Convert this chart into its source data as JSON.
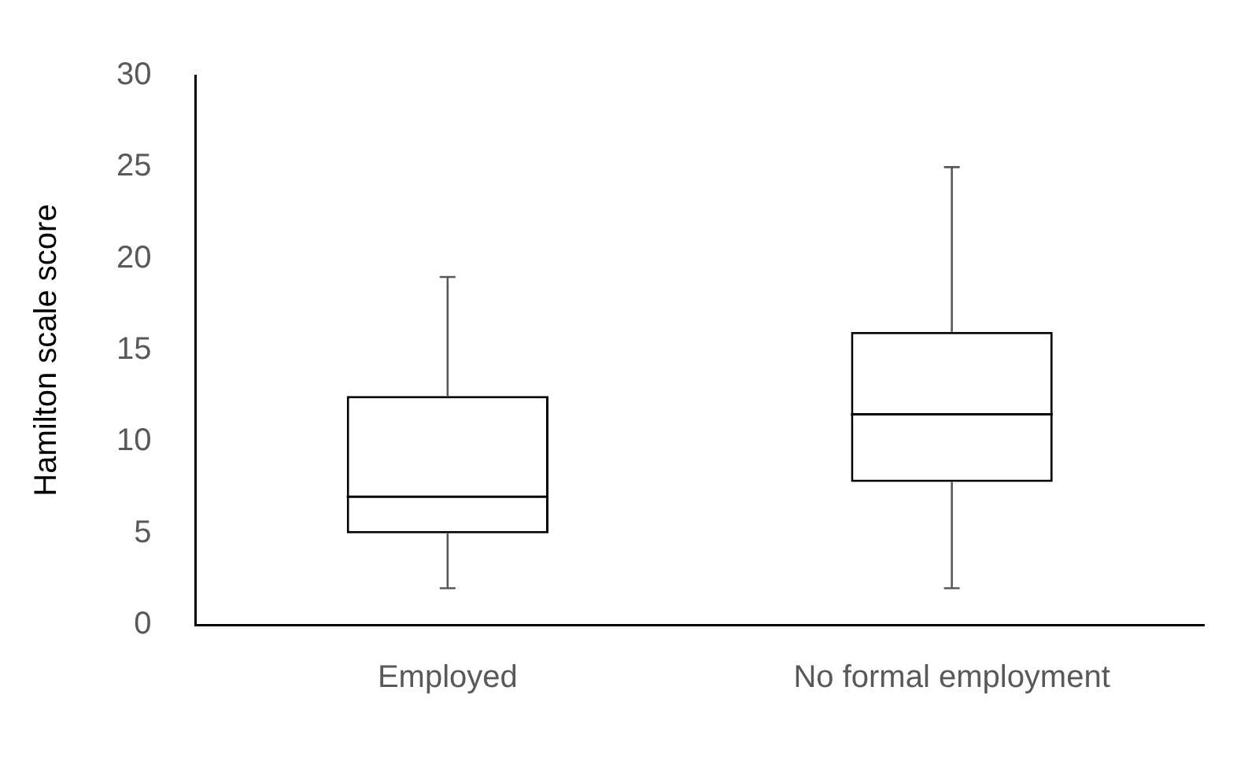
{
  "chart_data": {
    "type": "box",
    "ylabel": "Hamilton scale score",
    "categories": [
      "Employed",
      "No formal employment"
    ],
    "boxes": [
      {
        "low": 2,
        "q1": 5,
        "median": 7,
        "q3": 12.5,
        "high": 19
      },
      {
        "low": 2,
        "q1": 7.8,
        "median": 11.5,
        "q3": 16,
        "high": 25
      }
    ],
    "ylim": [
      0,
      30
    ],
    "yticks": [
      0,
      5,
      10,
      15,
      20,
      25,
      30
    ]
  }
}
